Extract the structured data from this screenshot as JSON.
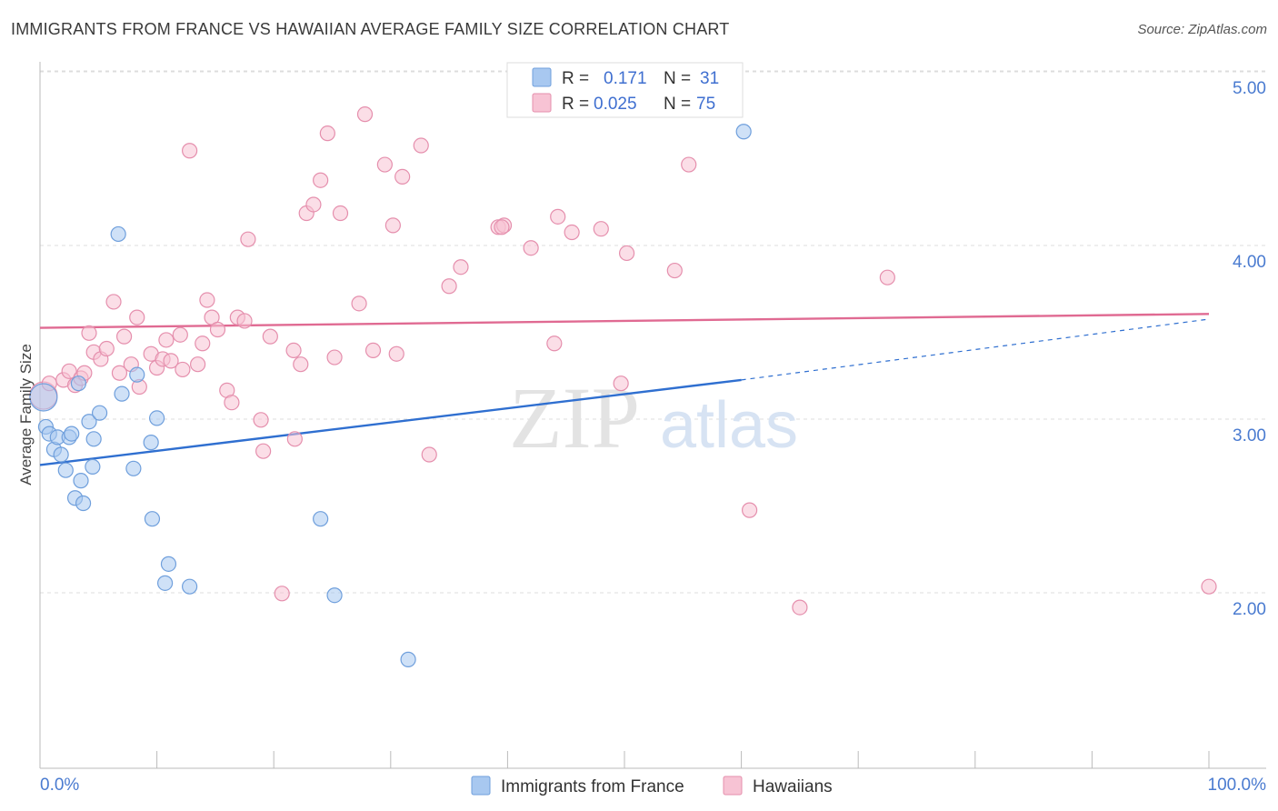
{
  "header": {
    "title": "IMMIGRANTS FROM FRANCE VS HAWAIIAN AVERAGE FAMILY SIZE CORRELATION CHART",
    "source": "Source: ZipAtlas.com"
  },
  "watermark": {
    "zip": "ZIP",
    "atlas": "atlas"
  },
  "legend": {
    "rows": [
      {
        "r_label": "R =",
        "r_value": "0.171",
        "n_label": "N =",
        "n_value": "31",
        "color": "#a8c8f0",
        "stroke": "#6f9fdc"
      },
      {
        "r_label": "R =",
        "r_value": "0.025",
        "n_label": "N =",
        "n_value": "75",
        "color": "#f7c3d4",
        "stroke": "#e58fad"
      }
    ]
  },
  "bottom_legend": [
    {
      "label": "Immigrants from France",
      "color": "#a8c8f0",
      "stroke": "#6f9fdc"
    },
    {
      "label": "Hawaiians",
      "color": "#f7c3d4",
      "stroke": "#e58fad"
    }
  ],
  "chart_data": {
    "type": "scatter",
    "title": "IMMIGRANTS FROM FRANCE VS HAWAIIAN AVERAGE FAMILY SIZE CORRELATION CHART",
    "xlabel": "",
    "ylabel": "Average Family Size",
    "xlim": [
      0,
      100
    ],
    "ylim": [
      1.0,
      5.1
    ],
    "x_tick_labels": [
      "0.0%",
      "100.0%"
    ],
    "y_ticks": [
      2.0,
      3.0,
      4.0,
      5.0
    ],
    "y_tick_labels": [
      "2.00",
      "3.00",
      "4.00",
      "5.00"
    ],
    "grid": "horizontal dashed",
    "legend_position": "top-center",
    "series": [
      {
        "name": "Immigrants from France",
        "color": "#a8c8f0",
        "stroke": "#6f9fdc",
        "trend_color": "#2f6fd0",
        "trend": {
          "x0": 0,
          "y0": 2.83,
          "x1": 60,
          "y1": 3.32,
          "dash_to_x": 100,
          "dash_to_y": 3.67
        },
        "points": [
          [
            0.3,
            3.22
          ],
          [
            0.5,
            3.05
          ],
          [
            0.8,
            3.01
          ],
          [
            1.2,
            2.92
          ],
          [
            1.5,
            2.99
          ],
          [
            1.8,
            2.89
          ],
          [
            2.2,
            2.8
          ],
          [
            2.5,
            2.99
          ],
          [
            2.7,
            3.01
          ],
          [
            3.0,
            2.64
          ],
          [
            3.3,
            3.3
          ],
          [
            3.5,
            2.74
          ],
          [
            3.7,
            2.61
          ],
          [
            4.2,
            3.08
          ],
          [
            4.5,
            2.82
          ],
          [
            4.6,
            2.98
          ],
          [
            5.1,
            3.13
          ],
          [
            6.7,
            4.16
          ],
          [
            7.0,
            3.24
          ],
          [
            8.0,
            2.81
          ],
          [
            8.3,
            3.35
          ],
          [
            9.5,
            2.96
          ],
          [
            9.6,
            2.52
          ],
          [
            10.0,
            3.1
          ],
          [
            10.7,
            2.15
          ],
          [
            11.0,
            2.26
          ],
          [
            12.8,
            2.13
          ],
          [
            24.0,
            2.52
          ],
          [
            25.2,
            2.08
          ],
          [
            31.5,
            1.71
          ],
          [
            60.2,
            4.75
          ]
        ]
      },
      {
        "name": "Hawaiians",
        "color": "#f7c3d4",
        "stroke": "#e58fad",
        "trend_color": "#e06a92",
        "trend": {
          "x0": 0,
          "y0": 3.62,
          "x1": 100,
          "y1": 3.7
        },
        "points": [
          [
            0.3,
            3.23
          ],
          [
            0.8,
            3.3
          ],
          [
            2.0,
            3.32
          ],
          [
            2.5,
            3.37
          ],
          [
            3.0,
            3.29
          ],
          [
            3.5,
            3.33
          ],
          [
            3.8,
            3.36
          ],
          [
            4.2,
            3.59
          ],
          [
            4.6,
            3.48
          ],
          [
            5.2,
            3.44
          ],
          [
            5.7,
            3.5
          ],
          [
            6.3,
            3.77
          ],
          [
            6.8,
            3.36
          ],
          [
            7.2,
            3.57
          ],
          [
            7.8,
            3.41
          ],
          [
            8.3,
            3.68
          ],
          [
            8.5,
            3.28
          ],
          [
            9.5,
            3.47
          ],
          [
            10.0,
            3.39
          ],
          [
            10.5,
            3.44
          ],
          [
            10.8,
            3.55
          ],
          [
            11.2,
            3.43
          ],
          [
            12.0,
            3.58
          ],
          [
            12.2,
            3.38
          ],
          [
            12.8,
            4.64
          ],
          [
            13.5,
            3.41
          ],
          [
            13.9,
            3.53
          ],
          [
            14.3,
            3.78
          ],
          [
            14.7,
            3.68
          ],
          [
            15.2,
            3.61
          ],
          [
            16.0,
            3.26
          ],
          [
            16.4,
            3.19
          ],
          [
            16.9,
            3.68
          ],
          [
            17.5,
            3.66
          ],
          [
            17.8,
            4.13
          ],
          [
            18.9,
            3.09
          ],
          [
            19.1,
            2.91
          ],
          [
            19.7,
            3.57
          ],
          [
            20.7,
            2.09
          ],
          [
            21.7,
            3.49
          ],
          [
            21.8,
            2.98
          ],
          [
            22.3,
            3.41
          ],
          [
            22.8,
            4.28
          ],
          [
            23.4,
            4.33
          ],
          [
            24.0,
            4.47
          ],
          [
            24.6,
            4.74
          ],
          [
            25.2,
            3.45
          ],
          [
            25.7,
            4.28
          ],
          [
            27.3,
            3.76
          ],
          [
            27.8,
            4.85
          ],
          [
            28.5,
            3.49
          ],
          [
            29.5,
            4.56
          ],
          [
            30.2,
            4.21
          ],
          [
            30.5,
            3.47
          ],
          [
            31.0,
            4.49
          ],
          [
            32.6,
            4.67
          ],
          [
            33.3,
            2.89
          ],
          [
            35.0,
            3.86
          ],
          [
            36.0,
            3.97
          ],
          [
            39.2,
            4.2
          ],
          [
            39.7,
            4.21
          ],
          [
            42.0,
            4.08
          ],
          [
            44.0,
            3.53
          ],
          [
            44.3,
            4.26
          ],
          [
            45.5,
            4.17
          ],
          [
            48.0,
            4.19
          ],
          [
            49.7,
            3.3
          ],
          [
            50.2,
            4.05
          ],
          [
            54.3,
            3.95
          ],
          [
            55.5,
            4.56
          ],
          [
            60.7,
            2.57
          ],
          [
            65.0,
            2.01
          ],
          [
            72.5,
            3.91
          ],
          [
            100.0,
            2.13
          ],
          [
            39.5,
            4.2
          ]
        ]
      }
    ]
  }
}
